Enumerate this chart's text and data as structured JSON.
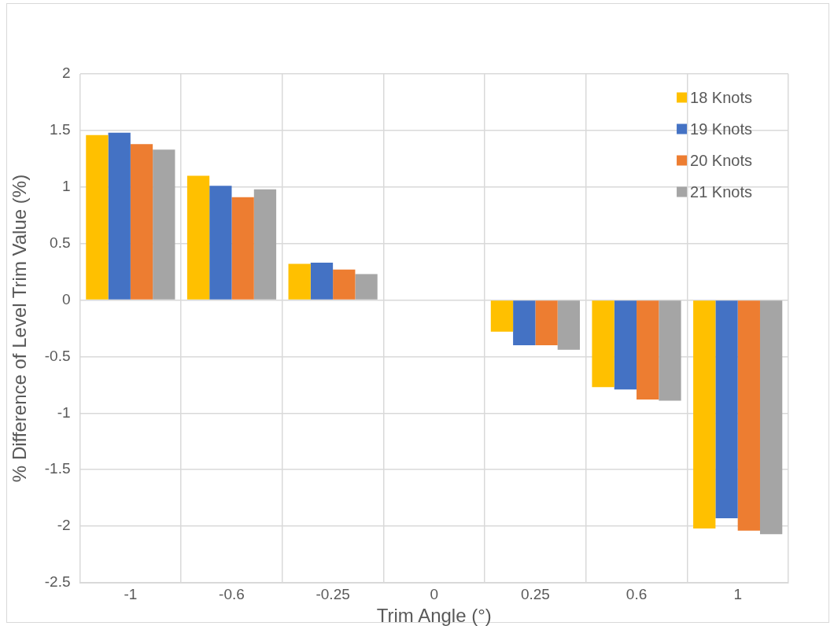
{
  "chart_data": {
    "type": "bar",
    "xlabel": "Trim Angle (°)",
    "ylabel": "% Difference of Level Trim Value (%)",
    "categories": [
      "-1",
      "-0.6",
      "-0.25",
      "0",
      "0.25",
      "0.6",
      "1"
    ],
    "series": [
      {
        "name": "18 Knots",
        "color": "#ffc000",
        "values": [
          1.46,
          1.1,
          0.32,
          0,
          -0.28,
          -0.77,
          -2.02
        ]
      },
      {
        "name": "19 Knots",
        "color": "#4472c4",
        "values": [
          1.48,
          1.01,
          0.33,
          0,
          -0.4,
          -0.79,
          -1.93
        ]
      },
      {
        "name": "20 Knots",
        "color": "#ed7d31",
        "values": [
          1.38,
          0.91,
          0.27,
          0,
          -0.4,
          -0.88,
          -2.04
        ]
      },
      {
        "name": "21 Knots",
        "color": "#a5a5a5",
        "values": [
          1.33,
          0.98,
          0.23,
          0,
          -0.44,
          -0.89,
          -2.07
        ]
      }
    ],
    "ylim": [
      -2.5,
      2
    ],
    "yticks": [
      -2.5,
      -2,
      -1.5,
      -1,
      -0.5,
      0,
      0.5,
      1,
      1.5,
      2
    ],
    "grid": true,
    "legend": "top right"
  }
}
